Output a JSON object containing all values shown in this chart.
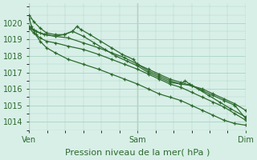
{
  "bg_color": "#d8efe8",
  "grid_color": "#b0d8c8",
  "line_color": "#2d6a2d",
  "marker_color": "#2d6a2d",
  "xlabel": "Pression niveau de la mer( hPa )",
  "xlabel_fontsize": 8,
  "tick_label_color": "#2d6a2d",
  "tick_fontsize": 7,
  "ylim": [
    1013.5,
    1021.2
  ],
  "yticks": [
    1014,
    1015,
    1016,
    1017,
    1018,
    1019,
    1020
  ],
  "xtick_labels": [
    "Ven",
    "Sam",
    "Dim"
  ],
  "xtick_positions": [
    0,
    0.5,
    1.0
  ],
  "series": [
    {
      "x": [
        0.0,
        0.02,
        0.05,
        0.08,
        0.12,
        0.16,
        0.2,
        0.25,
        0.3,
        0.35,
        0.4,
        0.45,
        0.5,
        0.55,
        0.6,
        0.65,
        0.7,
        0.75,
        0.8,
        0.85,
        0.9,
        0.95,
        1.0
      ],
      "y": [
        1020.5,
        1020.1,
        1019.7,
        1019.4,
        1019.3,
        1019.3,
        1019.5,
        1019.2,
        1018.8,
        1018.4,
        1018.0,
        1017.7,
        1017.4,
        1017.0,
        1016.7,
        1016.4,
        1016.3,
        1016.2,
        1016.0,
        1015.7,
        1015.4,
        1015.1,
        1014.7
      ]
    },
    {
      "x": [
        0.0,
        0.02,
        0.05,
        0.08,
        0.12,
        0.16,
        0.2,
        0.22,
        0.24,
        0.28,
        0.33,
        0.38,
        0.43,
        0.48,
        0.5,
        0.55,
        0.6,
        0.65,
        0.7,
        0.72,
        0.74,
        0.78,
        0.83,
        0.88,
        0.93,
        1.0
      ],
      "y": [
        1019.8,
        1019.6,
        1019.4,
        1019.3,
        1019.2,
        1019.3,
        1019.5,
        1019.8,
        1019.6,
        1019.3,
        1018.9,
        1018.5,
        1018.1,
        1017.8,
        1017.5,
        1017.1,
        1016.8,
        1016.5,
        1016.3,
        1016.5,
        1016.3,
        1016.0,
        1015.6,
        1015.2,
        1014.8,
        1014.3
      ]
    },
    {
      "x": [
        0.0,
        0.03,
        0.07,
        0.12,
        0.18,
        0.25,
        0.32,
        0.38,
        0.44,
        0.5,
        0.55,
        0.6,
        0.65,
        0.7,
        0.75,
        0.8,
        0.85,
        0.9,
        0.95,
        1.0
      ],
      "y": [
        1019.7,
        1019.5,
        1019.3,
        1019.2,
        1019.1,
        1018.8,
        1018.5,
        1018.2,
        1017.9,
        1017.5,
        1017.2,
        1016.9,
        1016.6,
        1016.4,
        1016.2,
        1015.9,
        1015.6,
        1015.3,
        1015.0,
        1014.2
      ]
    },
    {
      "x": [
        0.0,
        0.02,
        0.05,
        0.08,
        0.12,
        0.18,
        0.25,
        0.32,
        0.38,
        0.44,
        0.5,
        0.55,
        0.6,
        0.65,
        0.7,
        0.75,
        0.8,
        0.85,
        0.9,
        0.95,
        1.0
      ],
      "y": [
        1019.7,
        1019.4,
        1019.1,
        1018.9,
        1018.8,
        1018.6,
        1018.4,
        1018.1,
        1017.8,
        1017.5,
        1017.2,
        1016.9,
        1016.6,
        1016.3,
        1016.1,
        1015.8,
        1015.5,
        1015.2,
        1014.9,
        1014.5,
        1014.1
      ]
    },
    {
      "x": [
        0.0,
        0.01,
        0.03,
        0.05,
        0.08,
        0.12,
        0.18,
        0.25,
        0.32,
        0.38,
        0.44,
        0.5,
        0.55,
        0.6,
        0.65,
        0.7,
        0.75,
        0.8,
        0.85,
        0.9,
        0.95,
        1.0
      ],
      "y": [
        1020.3,
        1019.8,
        1019.3,
        1018.9,
        1018.5,
        1018.2,
        1017.8,
        1017.5,
        1017.2,
        1016.9,
        1016.6,
        1016.3,
        1016.0,
        1015.7,
        1015.5,
        1015.3,
        1015.0,
        1014.7,
        1014.4,
        1014.1,
        1013.9,
        1013.8
      ]
    }
  ]
}
